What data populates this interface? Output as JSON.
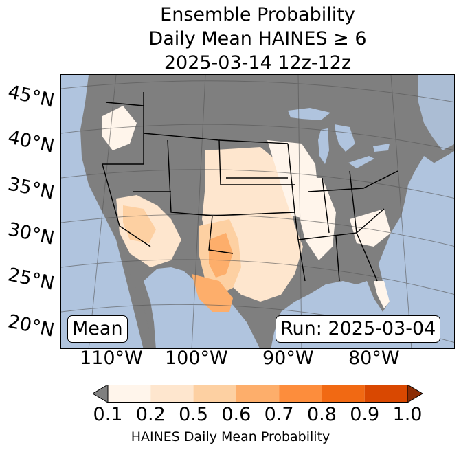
{
  "title": {
    "line1": "Ensemble Probability",
    "line2": "Daily Mean HAINES ≥ 6",
    "line3": "2025-03-14 12z-12z"
  },
  "lat_labels": [
    "45°N",
    "40°N",
    "35°N",
    "30°N",
    "25°N",
    "20°N"
  ],
  "lon_labels": [
    "110°W",
    "100°W",
    "90°W",
    "80°W"
  ],
  "stat_box": "Mean",
  "run_box": "Run: 2025-03-04",
  "colorbar": {
    "ticks": [
      "0.1",
      "0.2",
      "0.5",
      "0.6",
      "0.7",
      "0.8",
      "0.9",
      "1.0"
    ],
    "label": "HAINES Daily Mean Probability",
    "under_color": "#7f7f7f",
    "colors": [
      "#fff5eb",
      "#fee6ce",
      "#fdd0a2",
      "#fdae6b",
      "#fd8d3c",
      "#f16913",
      "#d94801",
      "#8c2d04"
    ]
  },
  "map_colors": {
    "ocean": "#b0c4de",
    "land_below_threshold": "#7f7f7f",
    "lakes": "#b0c4de",
    "borders": "#000000"
  }
}
